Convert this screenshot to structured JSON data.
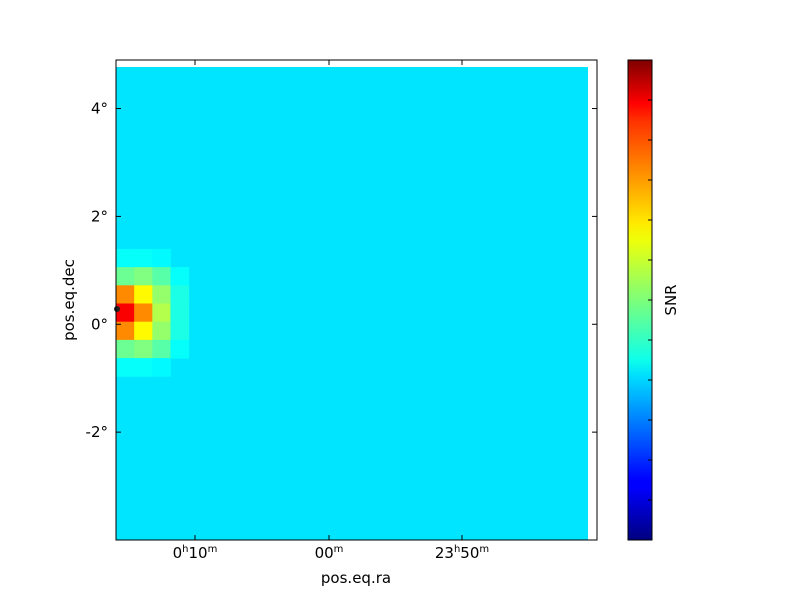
{
  "chart_data": {
    "type": "heatmap",
    "title": "",
    "xlabel": "pos.eq.ra",
    "ylabel": "pos.eq.dec",
    "colorbar_label": "SNR",
    "colormap": "jet",
    "x_ticks": [
      {
        "h": "0",
        "h_unit": "h",
        "m": "10",
        "m_unit": "m"
      },
      {
        "h": "",
        "h_unit": "",
        "m": "00",
        "m_unit": "m"
      },
      {
        "h": "23",
        "h_unit": "h",
        "m": "50",
        "m_unit": "m"
      }
    ],
    "y_ticks": [
      "4°",
      "2°",
      "0°",
      "-2°"
    ],
    "y_tick_values": [
      4,
      2,
      0,
      -2
    ],
    "ylim": [
      -4,
      4.9
    ],
    "background_level": 0.35,
    "grid_cols": 26,
    "grid_rows": 26,
    "cells": [
      {
        "col": 0,
        "row": 10,
        "level": 0.38
      },
      {
        "col": 1,
        "row": 10,
        "level": 0.38
      },
      {
        "col": 2,
        "row": 10,
        "level": 0.37
      },
      {
        "col": 0,
        "row": 11,
        "level": 0.48
      },
      {
        "col": 1,
        "row": 11,
        "level": 0.5
      },
      {
        "col": 2,
        "row": 11,
        "level": 0.46
      },
      {
        "col": 3,
        "row": 11,
        "level": 0.38
      },
      {
        "col": 0,
        "row": 12,
        "level": 0.74
      },
      {
        "col": 1,
        "row": 12,
        "level": 0.63
      },
      {
        "col": 2,
        "row": 12,
        "level": 0.52
      },
      {
        "col": 3,
        "row": 12,
        "level": 0.4
      },
      {
        "col": 0,
        "row": 13,
        "level": 0.88
      },
      {
        "col": 1,
        "row": 13,
        "level": 0.74
      },
      {
        "col": 2,
        "row": 13,
        "level": 0.55
      },
      {
        "col": 3,
        "row": 13,
        "level": 0.4
      },
      {
        "col": 0,
        "row": 14,
        "level": 0.74
      },
      {
        "col": 1,
        "row": 14,
        "level": 0.63
      },
      {
        "col": 2,
        "row": 14,
        "level": 0.52
      },
      {
        "col": 3,
        "row": 14,
        "level": 0.4
      },
      {
        "col": 0,
        "row": 15,
        "level": 0.48
      },
      {
        "col": 1,
        "row": 15,
        "level": 0.5
      },
      {
        "col": 2,
        "row": 15,
        "level": 0.46
      },
      {
        "col": 3,
        "row": 15,
        "level": 0.38
      },
      {
        "col": 0,
        "row": 16,
        "level": 0.38
      },
      {
        "col": 1,
        "row": 16,
        "level": 0.38
      },
      {
        "col": 2,
        "row": 16,
        "level": 0.37
      }
    ]
  }
}
